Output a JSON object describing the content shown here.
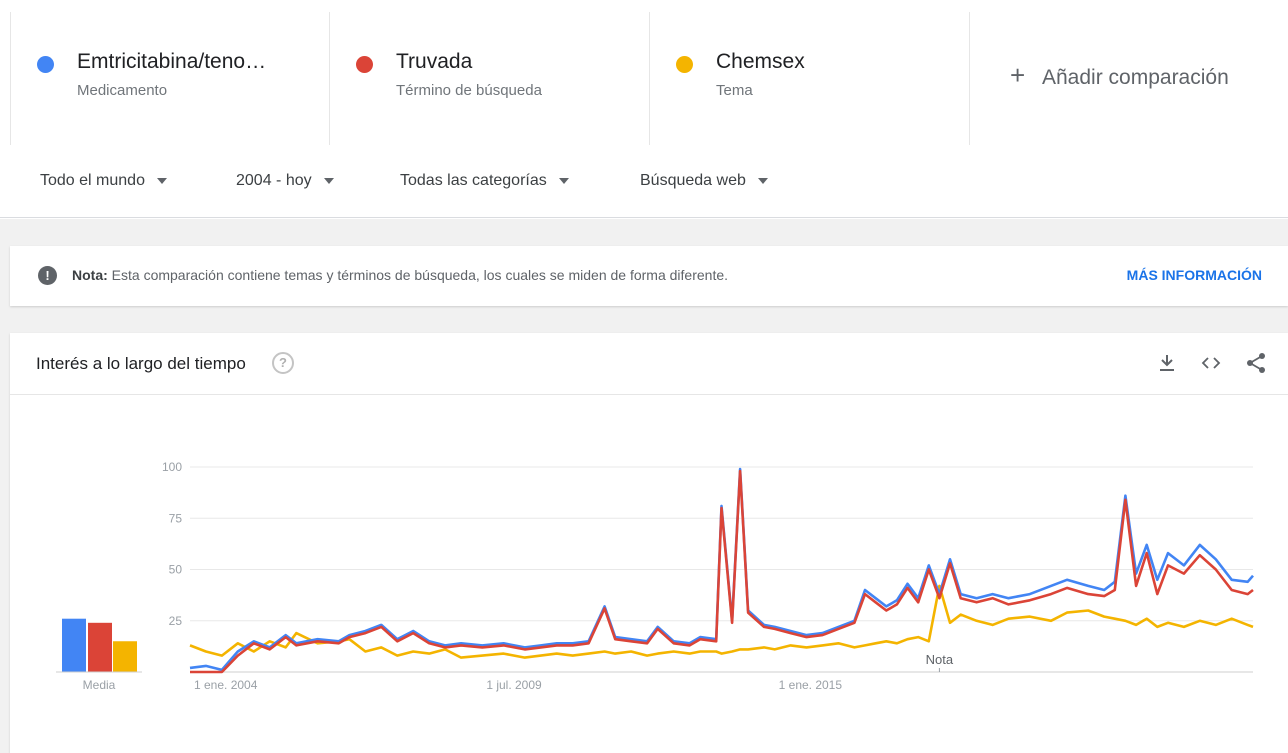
{
  "terms": [
    {
      "name": "Emtricitabina/teno…",
      "kind": "Medicamento",
      "color": "#4285f4"
    },
    {
      "name": "Truvada",
      "kind": "Término de búsqueda",
      "color": "#db4437"
    },
    {
      "name": "Chemsex",
      "kind": "Tema",
      "color": "#f4b400"
    }
  ],
  "add_comparison": "Añadir comparación",
  "filters": {
    "region": "Todo el mundo",
    "period": "2004 - hoy",
    "category": "Todas las categorías",
    "search_type": "Búsqueda web"
  },
  "note": {
    "label": "Nota:",
    "text": " Esta comparación contiene temas y términos de búsqueda, los cuales se miden de forma diferente.",
    "link": "MÁS INFORMACIÓN"
  },
  "card": {
    "title": "Interés a lo largo del tiempo",
    "help_glyph": "?",
    "icons": [
      "download-icon",
      "embed-icon",
      "share-icon"
    ]
  },
  "chart_data": {
    "type": "line",
    "yticks": [
      "100",
      "75",
      "50",
      "25"
    ],
    "ylim": [
      0,
      100
    ],
    "xticks": [
      "1 ene. 2004",
      "1 jul. 2009",
      "1 ene. 2015"
    ],
    "annotation": "Nota",
    "average_label": "Media",
    "averages": [
      26,
      24,
      15
    ],
    "x_start": "2004-01",
    "x_end": "2019-03",
    "series": [
      {
        "name": "Emtricitabina/teno…",
        "color": "#4285f4",
        "points": [
          [
            2004.0,
            2
          ],
          [
            2004.3,
            3
          ],
          [
            2004.6,
            1
          ],
          [
            2004.9,
            10
          ],
          [
            2005.2,
            15
          ],
          [
            2005.5,
            12
          ],
          [
            2005.8,
            18
          ],
          [
            2006.0,
            14
          ],
          [
            2006.4,
            16
          ],
          [
            2006.8,
            15
          ],
          [
            2007.0,
            18
          ],
          [
            2007.3,
            20
          ],
          [
            2007.6,
            23
          ],
          [
            2007.9,
            16
          ],
          [
            2008.2,
            20
          ],
          [
            2008.5,
            15
          ],
          [
            2008.8,
            13
          ],
          [
            2009.1,
            14
          ],
          [
            2009.5,
            13
          ],
          [
            2009.9,
            14
          ],
          [
            2010.3,
            12
          ],
          [
            2010.6,
            13
          ],
          [
            2010.9,
            14
          ],
          [
            2011.2,
            14
          ],
          [
            2011.5,
            15
          ],
          [
            2011.8,
            32
          ],
          [
            2012.0,
            17
          ],
          [
            2012.3,
            16
          ],
          [
            2012.6,
            15
          ],
          [
            2012.8,
            22
          ],
          [
            2013.1,
            15
          ],
          [
            2013.4,
            14
          ],
          [
            2013.6,
            17
          ],
          [
            2013.9,
            16
          ],
          [
            2014.0,
            81
          ],
          [
            2014.2,
            25
          ],
          [
            2014.35,
            99
          ],
          [
            2014.5,
            30
          ],
          [
            2014.8,
            23
          ],
          [
            2015.0,
            22
          ],
          [
            2015.3,
            20
          ],
          [
            2015.6,
            18
          ],
          [
            2015.9,
            19
          ],
          [
            2016.2,
            22
          ],
          [
            2016.5,
            25
          ],
          [
            2016.7,
            40
          ],
          [
            2016.9,
            36
          ],
          [
            2017.1,
            32
          ],
          [
            2017.3,
            35
          ],
          [
            2017.5,
            43
          ],
          [
            2017.7,
            36
          ],
          [
            2017.9,
            52
          ],
          [
            2018.1,
            38
          ],
          [
            2018.3,
            55
          ],
          [
            2018.5,
            38
          ],
          [
            2018.8,
            36
          ],
          [
            2019.1,
            38
          ],
          [
            2019.4,
            36
          ],
          [
            2019.8,
            38
          ],
          [
            2020.2,
            42
          ],
          [
            2020.5,
            45
          ],
          [
            2020.9,
            42
          ],
          [
            2021.2,
            40
          ],
          [
            2021.4,
            44
          ],
          [
            2021.6,
            86
          ],
          [
            2021.8,
            48
          ],
          [
            2022.0,
            62
          ],
          [
            2022.2,
            45
          ],
          [
            2022.4,
            58
          ],
          [
            2022.7,
            52
          ],
          [
            2023.0,
            62
          ],
          [
            2023.3,
            55
          ],
          [
            2023.6,
            45
          ],
          [
            2023.9,
            44
          ],
          [
            2024.0,
            47
          ]
        ]
      },
      {
        "name": "Truvada",
        "color": "#db4437",
        "points": [
          [
            2004.0,
            0
          ],
          [
            2004.3,
            0
          ],
          [
            2004.6,
            0
          ],
          [
            2004.9,
            8
          ],
          [
            2005.2,
            14
          ],
          [
            2005.5,
            11
          ],
          [
            2005.8,
            17
          ],
          [
            2006.0,
            13
          ],
          [
            2006.4,
            15
          ],
          [
            2006.8,
            14
          ],
          [
            2007.0,
            17
          ],
          [
            2007.3,
            19
          ],
          [
            2007.6,
            22
          ],
          [
            2007.9,
            15
          ],
          [
            2008.2,
            19
          ],
          [
            2008.5,
            14
          ],
          [
            2008.8,
            12
          ],
          [
            2009.1,
            13
          ],
          [
            2009.5,
            12
          ],
          [
            2009.9,
            13
          ],
          [
            2010.3,
            11
          ],
          [
            2010.6,
            12
          ],
          [
            2010.9,
            13
          ],
          [
            2011.2,
            13
          ],
          [
            2011.5,
            14
          ],
          [
            2011.8,
            31
          ],
          [
            2012.0,
            16
          ],
          [
            2012.3,
            15
          ],
          [
            2012.6,
            14
          ],
          [
            2012.8,
            21
          ],
          [
            2013.1,
            14
          ],
          [
            2013.4,
            13
          ],
          [
            2013.6,
            16
          ],
          [
            2013.9,
            15
          ],
          [
            2014.0,
            80
          ],
          [
            2014.2,
            24
          ],
          [
            2014.35,
            98
          ],
          [
            2014.5,
            29
          ],
          [
            2014.8,
            22
          ],
          [
            2015.0,
            21
          ],
          [
            2015.3,
            19
          ],
          [
            2015.6,
            17
          ],
          [
            2015.9,
            18
          ],
          [
            2016.2,
            21
          ],
          [
            2016.5,
            24
          ],
          [
            2016.7,
            38
          ],
          [
            2016.9,
            34
          ],
          [
            2017.1,
            30
          ],
          [
            2017.3,
            33
          ],
          [
            2017.5,
            41
          ],
          [
            2017.7,
            34
          ],
          [
            2017.9,
            50
          ],
          [
            2018.1,
            36
          ],
          [
            2018.3,
            53
          ],
          [
            2018.5,
            36
          ],
          [
            2018.8,
            34
          ],
          [
            2019.1,
            36
          ],
          [
            2019.4,
            33
          ],
          [
            2019.8,
            35
          ],
          [
            2020.2,
            38
          ],
          [
            2020.5,
            41
          ],
          [
            2020.9,
            38
          ],
          [
            2021.2,
            37
          ],
          [
            2021.4,
            40
          ],
          [
            2021.6,
            84
          ],
          [
            2021.8,
            42
          ],
          [
            2022.0,
            58
          ],
          [
            2022.2,
            38
          ],
          [
            2022.4,
            52
          ],
          [
            2022.7,
            48
          ],
          [
            2023.0,
            57
          ],
          [
            2023.3,
            50
          ],
          [
            2023.6,
            40
          ],
          [
            2023.9,
            38
          ],
          [
            2024.0,
            40
          ]
        ]
      },
      {
        "name": "Chemsex",
        "color": "#f4b400",
        "points": [
          [
            2004.0,
            13
          ],
          [
            2004.3,
            10
          ],
          [
            2004.6,
            8
          ],
          [
            2004.9,
            14
          ],
          [
            2005.2,
            10
          ],
          [
            2005.5,
            15
          ],
          [
            2005.8,
            12
          ],
          [
            2006.0,
            19
          ],
          [
            2006.4,
            14
          ],
          [
            2006.8,
            15
          ],
          [
            2007.0,
            16
          ],
          [
            2007.3,
            10
          ],
          [
            2007.6,
            12
          ],
          [
            2007.9,
            8
          ],
          [
            2008.2,
            10
          ],
          [
            2008.5,
            9
          ],
          [
            2008.8,
            11
          ],
          [
            2009.1,
            7
          ],
          [
            2009.5,
            8
          ],
          [
            2009.9,
            9
          ],
          [
            2010.3,
            7
          ],
          [
            2010.6,
            8
          ],
          [
            2010.9,
            9
          ],
          [
            2011.2,
            8
          ],
          [
            2011.5,
            9
          ],
          [
            2011.8,
            10
          ],
          [
            2012.0,
            9
          ],
          [
            2012.3,
            10
          ],
          [
            2012.6,
            8
          ],
          [
            2012.8,
            9
          ],
          [
            2013.1,
            10
          ],
          [
            2013.4,
            9
          ],
          [
            2013.6,
            10
          ],
          [
            2013.9,
            10
          ],
          [
            2014.0,
            9
          ],
          [
            2014.2,
            10
          ],
          [
            2014.35,
            11
          ],
          [
            2014.5,
            11
          ],
          [
            2014.8,
            12
          ],
          [
            2015.0,
            11
          ],
          [
            2015.3,
            13
          ],
          [
            2015.6,
            12
          ],
          [
            2015.9,
            13
          ],
          [
            2016.2,
            14
          ],
          [
            2016.5,
            12
          ],
          [
            2016.7,
            13
          ],
          [
            2016.9,
            14
          ],
          [
            2017.1,
            15
          ],
          [
            2017.3,
            14
          ],
          [
            2017.5,
            16
          ],
          [
            2017.7,
            17
          ],
          [
            2017.9,
            15
          ],
          [
            2018.1,
            42
          ],
          [
            2018.3,
            24
          ],
          [
            2018.5,
            28
          ],
          [
            2018.8,
            25
          ],
          [
            2019.1,
            23
          ],
          [
            2019.4,
            26
          ],
          [
            2019.8,
            27
          ],
          [
            2020.2,
            25
          ],
          [
            2020.5,
            29
          ],
          [
            2020.9,
            30
          ],
          [
            2021.2,
            27
          ],
          [
            2021.4,
            26
          ],
          [
            2021.6,
            25
          ],
          [
            2021.8,
            23
          ],
          [
            2022.0,
            26
          ],
          [
            2022.2,
            22
          ],
          [
            2022.4,
            24
          ],
          [
            2022.7,
            22
          ],
          [
            2023.0,
            25
          ],
          [
            2023.3,
            23
          ],
          [
            2023.6,
            26
          ],
          [
            2023.9,
            23
          ],
          [
            2024.0,
            22
          ]
        ]
      }
    ]
  }
}
